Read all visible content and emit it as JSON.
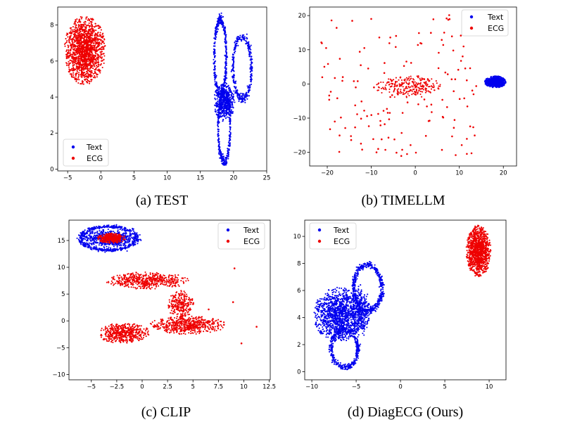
{
  "colors": {
    "text": "#0000ee",
    "ecg": "#ee0000"
  },
  "chart_data": [
    {
      "type": "scatter",
      "caption": "(a) TEST",
      "xlim": [
        -6.5,
        25
      ],
      "ylim": [
        -0.1,
        9.0
      ],
      "xticks": [
        -5,
        0,
        5,
        10,
        15,
        20,
        25
      ],
      "yticks": [
        0,
        2,
        4,
        6,
        8
      ],
      "legend": {
        "position": "lower-left",
        "entries": [
          "Text",
          "ECG"
        ]
      },
      "series": [
        {
          "name": "Text",
          "color": "#0000ee",
          "clusters": [
            {
              "shape": "loop",
              "cx": 18.0,
              "cy": 6.2,
              "rx": 0.9,
              "ry": 2.1,
              "n": 450
            },
            {
              "shape": "loop",
              "cx": 21.3,
              "cy": 5.6,
              "rx": 1.4,
              "ry": 1.7,
              "n": 350
            },
            {
              "shape": "loop",
              "cx": 18.6,
              "cy": 2.3,
              "rx": 0.9,
              "ry": 1.9,
              "n": 350
            },
            {
              "shape": "blob",
              "cx": 18.6,
              "cy": 3.7,
              "rx": 1.5,
              "ry": 1.0,
              "n": 450
            }
          ]
        },
        {
          "name": "ECG",
          "color": "#ee0000",
          "clusters": [
            {
              "shape": "blob",
              "cx": -2.4,
              "cy": 6.6,
              "rx": 2.9,
              "ry": 1.8,
              "n": 1500
            }
          ]
        }
      ]
    },
    {
      "type": "scatter",
      "caption": "(b) TIMELLM",
      "xlim": [
        -24,
        23
      ],
      "ylim": [
        -24,
        22.5
      ],
      "xticks": [
        -20,
        -10,
        0,
        10,
        20
      ],
      "yticks": [
        -20,
        -10,
        0,
        10,
        20
      ],
      "legend": {
        "position": "upper-right",
        "entries": [
          "Text",
          "ECG"
        ]
      },
      "series": [
        {
          "name": "Text",
          "color": "#0000ee",
          "clusters": [
            {
              "shape": "blob",
              "cx": 18.2,
              "cy": 0.6,
              "rx": 2.3,
              "ry": 1.6,
              "n": 700
            }
          ]
        },
        {
          "name": "ECG",
          "color": "#ee0000",
          "clusters": [
            {
              "shape": "blob",
              "cx": -1.5,
              "cy": -0.8,
              "rx": 7.0,
              "ry": 3.2,
              "n": 260
            },
            {
              "shape": "scatter",
              "cx": -4.0,
              "cy": -0.5,
              "rx": 18.0,
              "ry": 21.0,
              "n": 150
            }
          ]
        }
      ]
    },
    {
      "type": "scatter",
      "caption": "(c) CLIP",
      "xlim": [
        -7.2,
        12.6
      ],
      "ylim": [
        -11,
        18.8
      ],
      "xticks": [
        -5.0,
        -2.5,
        0.0,
        2.5,
        5.0,
        7.5,
        10.0,
        12.5
      ],
      "yticks": [
        -10,
        -5,
        0,
        5,
        10,
        15
      ],
      "legend": {
        "position": "upper-right",
        "entries": [
          "Text",
          "ECG"
        ]
      },
      "series": [
        {
          "name": "Text",
          "color": "#0000ee",
          "clusters": [
            {
              "shape": "loop",
              "cx": -3.3,
              "cy": 15.4,
              "rx": 2.7,
              "ry": 2.2,
              "n": 500
            },
            {
              "shape": "blob",
              "cx": -3.3,
              "cy": 15.4,
              "rx": 2.2,
              "ry": 1.6,
              "n": 500
            }
          ]
        },
        {
          "name": "ECG",
          "color": "#ee0000",
          "clusters": [
            {
              "shape": "blob",
              "cx": -3.0,
              "cy": 15.4,
              "rx": 1.3,
              "ry": 0.9,
              "n": 350
            },
            {
              "shape": "blob",
              "cx": 0.5,
              "cy": 7.5,
              "rx": 3.8,
              "ry": 1.5,
              "n": 500
            },
            {
              "shape": "blob",
              "cx": 3.8,
              "cy": 3.0,
              "rx": 1.2,
              "ry": 2.5,
              "n": 250
            },
            {
              "shape": "blob",
              "cx": 4.5,
              "cy": -0.8,
              "rx": 3.5,
              "ry": 1.6,
              "n": 550
            },
            {
              "shape": "blob",
              "cx": -1.8,
              "cy": -2.3,
              "rx": 2.4,
              "ry": 1.8,
              "n": 500
            },
            {
              "shape": "scatter",
              "cx": 9.5,
              "cy": 2.0,
              "rx": 3.0,
              "ry": 9.0,
              "n": 6
            }
          ]
        }
      ]
    },
    {
      "type": "scatter",
      "caption": "(d) DiagECG (Ours)",
      "xlim": [
        -10.8,
        11.9
      ],
      "ylim": [
        -0.6,
        11.2
      ],
      "xticks": [
        -10,
        -5,
        0,
        5,
        10
      ],
      "yticks": [
        0,
        2,
        4,
        6,
        8,
        10
      ],
      "legend": {
        "position": "upper-left",
        "entries": [
          "Text",
          "ECG"
        ]
      },
      "series": [
        {
          "name": "Text",
          "color": "#0000ee",
          "clusters": [
            {
              "shape": "blob",
              "cx": -7.0,
              "cy": 4.2,
              "rx": 2.6,
              "ry": 1.9,
              "n": 1200
            },
            {
              "shape": "loop",
              "cx": -3.7,
              "cy": 6.2,
              "rx": 1.6,
              "ry": 1.7,
              "n": 500
            },
            {
              "shape": "loop",
              "cx": -6.3,
              "cy": 1.7,
              "rx": 1.5,
              "ry": 1.4,
              "n": 400
            },
            {
              "shape": "blob",
              "cx": -4.5,
              "cy": 4.5,
              "rx": 1.0,
              "ry": 1.8,
              "n": 300
            }
          ]
        },
        {
          "name": "ECG",
          "color": "#ee0000",
          "clusters": [
            {
              "shape": "blob",
              "cx": 8.8,
              "cy": 8.9,
              "rx": 1.3,
              "ry": 1.8,
              "n": 1100
            }
          ]
        }
      ]
    }
  ]
}
